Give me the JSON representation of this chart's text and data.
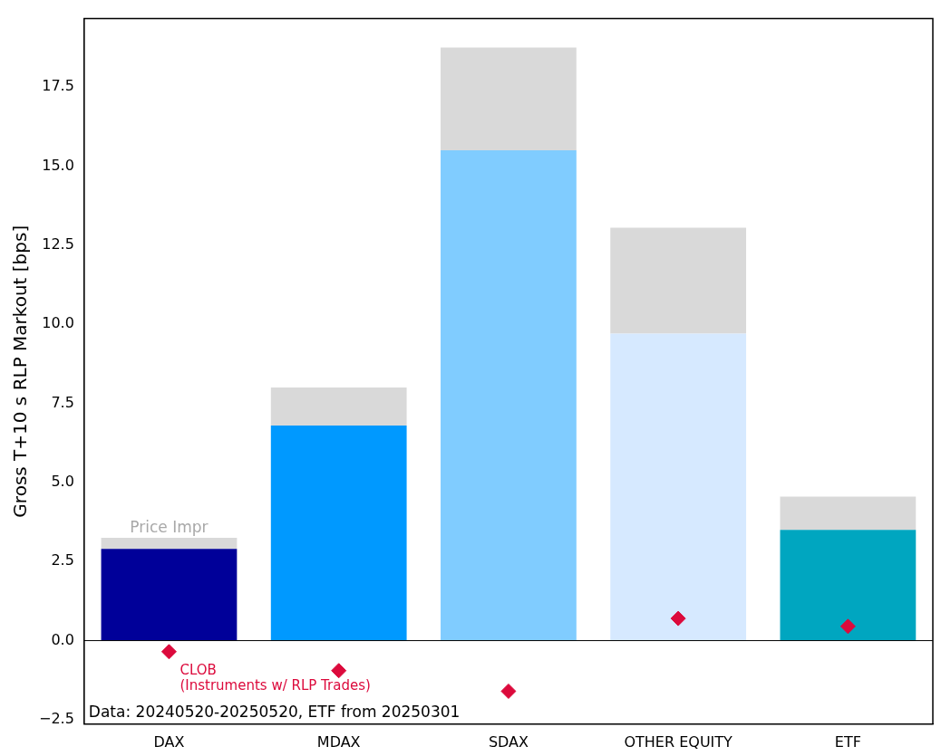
{
  "chart_data": {
    "type": "bar",
    "ylabel": "Gross T+10 s RLP Markout [bps]",
    "categories": [
      "DAX",
      "MDAX",
      "SDAX",
      "OTHER EQUITY",
      "ETF"
    ],
    "stacked": true,
    "series": [
      {
        "colors": [
          "#000099",
          "#0099ff",
          "#80ccff",
          "#d6e9ff",
          "#00a6c0"
        ],
        "values": [
          2.9,
          6.8,
          15.5,
          9.7,
          3.5
        ]
      },
      {
        "name": "Price Impr",
        "color": "#d9d9d9",
        "values": [
          0.35,
          1.2,
          3.25,
          3.35,
          1.05
        ]
      },
      {
        "type": "scatter",
        "name": "CLOB\n(Instruments w/ RLP Trades)",
        "color": "#dc0a3c",
        "marker": "diamond",
        "values": [
          -0.35,
          -0.95,
          -1.6,
          0.7,
          0.45
        ]
      }
    ],
    "ylim": [
      -2.64,
      19.66
    ],
    "yticks": [
      -2.5,
      {
        "value": 0,
        "label": "0.0"
      },
      2.5,
      {
        "value": 5,
        "label": "5.0"
      },
      7.5,
      {
        "value": 10,
        "label": "10.0"
      },
      12.5,
      {
        "value": 15,
        "label": "15.0"
      },
      17.5
    ],
    "grid": false,
    "legend": false,
    "ref_lines": [
      {
        "axis": "y",
        "value": 0,
        "color": "#000000"
      }
    ],
    "annotations": [
      "Data: 20240520-20250520, ETF from 20250301"
    ]
  }
}
